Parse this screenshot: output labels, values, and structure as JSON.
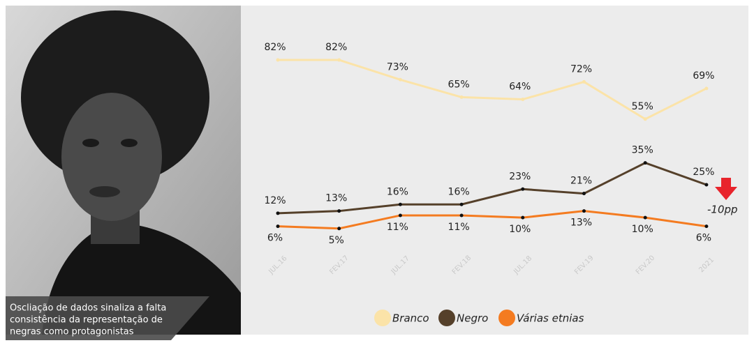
{
  "caption": {
    "lines": [
      "Oscliação de dados sinaliza a falta",
      "consistência da representação de",
      "negras como protagonistas"
    ]
  },
  "chart_data": {
    "type": "line",
    "categories": [
      "JUL.16",
      "FEV.17",
      "JUL.17",
      "FEV.18",
      "JUL.18",
      "FEV.19",
      "FEV.20",
      "2021"
    ],
    "series": [
      {
        "name": "Branco",
        "color": "#fbe3a8",
        "values": [
          82,
          82,
          73,
          65,
          64,
          72,
          55,
          69
        ],
        "value_labels": [
          "82%",
          "82%",
          "73%",
          "65%",
          "64%",
          "72%",
          "55%",
          "69%"
        ]
      },
      {
        "name": "Negro",
        "color": "#55402a",
        "values": [
          12,
          13,
          16,
          16,
          23,
          21,
          35,
          25
        ],
        "value_labels": [
          "12%",
          "13%",
          "16%",
          "16%",
          "23%",
          "21%",
          "35%",
          "25%"
        ]
      },
      {
        "name": "Várias etnias",
        "color": "#f47b20",
        "values": [
          6,
          5,
          11,
          11,
          10,
          13,
          10,
          6
        ],
        "value_labels": [
          "6%",
          "5%",
          "11%",
          "11%",
          "10%",
          "13%",
          "10%",
          "6%"
        ]
      }
    ],
    "annotation": "-10pp"
  }
}
